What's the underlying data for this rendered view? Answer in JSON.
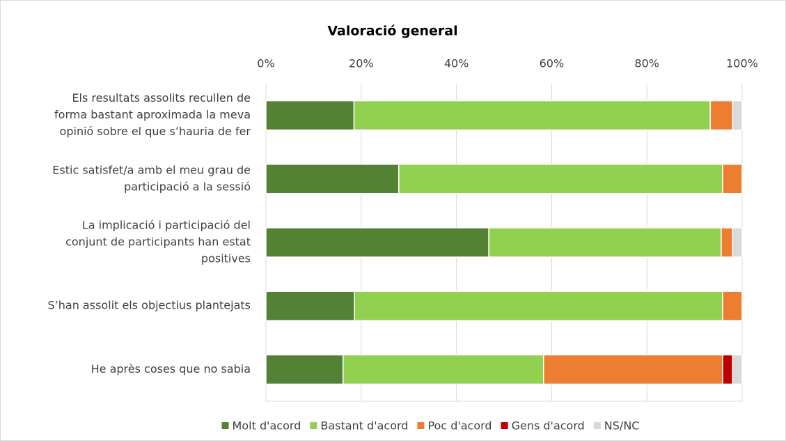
{
  "chart_data": {
    "type": "stacked_barh",
    "title": "Valoració general",
    "categories": [
      [
        "Els resultats assolits recullen de",
        "forma bastant aproximada la meva",
        "opinió sobre el que s’hauria de fer"
      ],
      [
        "Estic satisfet/a amb el meu grau de",
        "participació a la sessió"
      ],
      [
        "La implicació i participació del",
        "conjunt de participants han estat",
        "positives"
      ],
      [
        "S’han assolit els objectius plantejats"
      ],
      [
        "He après coses que no sabia"
      ]
    ],
    "series": [
      {
        "name": "Molt d'acord",
        "color": "#548235",
        "values": [
          18.5,
          27.9,
          46.8,
          18.6,
          16.2
        ]
      },
      {
        "name": "Bastant d'acord",
        "color": "#92d050",
        "values": [
          74.8,
          68.0,
          48.8,
          77.3,
          42.1
        ]
      },
      {
        "name": "Poc d'acord",
        "color": "#ed7d31",
        "values": [
          4.7,
          4.1,
          2.4,
          4.1,
          37.6
        ]
      },
      {
        "name": "Gens d'acord",
        "color": "#c00000",
        "values": [
          0,
          0,
          0,
          0,
          2.1
        ]
      },
      {
        "name": "NS/NC",
        "color": "#d9d9d9",
        "values": [
          2.0,
          0,
          2.0,
          0,
          2.0
        ]
      }
    ],
    "xlim": [
      0,
      100
    ],
    "xticks": [
      {
        "value": 0,
        "label": "0%"
      },
      {
        "value": 20,
        "label": "20%"
      },
      {
        "value": 40,
        "label": "40%"
      },
      {
        "value": 60,
        "label": "60%"
      },
      {
        "value": 80,
        "label": "80%"
      },
      {
        "value": 100,
        "label": "100%"
      }
    ],
    "grid": true,
    "legend": "bottom"
  }
}
